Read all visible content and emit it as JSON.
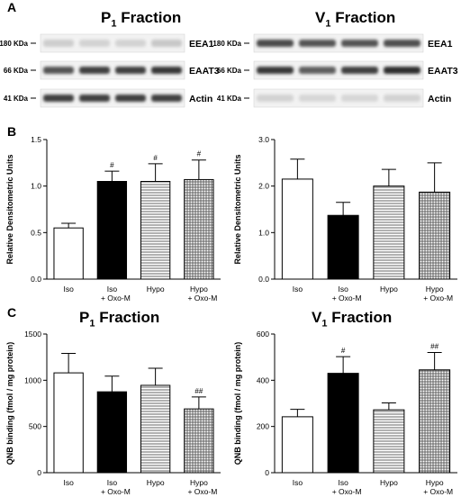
{
  "panels": {
    "a": "A",
    "b": "B",
    "c": "C"
  },
  "blots": [
    {
      "title_main": "P",
      "title_sub": "1",
      "title_rest": " Fraction",
      "lanes": 4,
      "rows": [
        {
          "marker": "180 KDa",
          "protein": "EEA1",
          "intensity": [
            0.15,
            0.12,
            0.12,
            0.18
          ]
        },
        {
          "marker": "66 KDa",
          "protein": "EAAT3",
          "intensity": [
            0.75,
            0.85,
            0.85,
            0.9
          ]
        },
        {
          "marker": "41 KDa",
          "protein": "Actin",
          "intensity": [
            0.85,
            0.85,
            0.85,
            0.85
          ]
        }
      ]
    },
    {
      "title_main": "V",
      "title_sub": "1",
      "title_rest": " Fraction",
      "lanes": 4,
      "rows": [
        {
          "marker": "180 KDa",
          "protein": "EEA1",
          "intensity": [
            0.8,
            0.75,
            0.75,
            0.78
          ]
        },
        {
          "marker": "66 KDa",
          "protein": "EAAT3",
          "intensity": [
            0.9,
            0.7,
            0.85,
            0.95
          ]
        },
        {
          "marker": "41 KDa",
          "protein": "Actin",
          "intensity": [
            0.12,
            0.1,
            0.1,
            0.12
          ]
        }
      ]
    }
  ],
  "chart_data": [
    {
      "type": "bar",
      "panel": "B-left",
      "categories": [
        "Iso",
        "Iso\n+ Oxo-M",
        "Hypo",
        "Hypo\n+ Oxo-M"
      ],
      "values": [
        0.55,
        1.05,
        1.05,
        1.07
      ],
      "errors": [
        0.05,
        0.11,
        0.19,
        0.21
      ],
      "markers": [
        "",
        "#",
        "#",
        "#"
      ],
      "ylabel": "Relative Densitometric Units",
      "ylim": [
        0,
        1.5
      ],
      "yticks": [
        "0.0",
        "0.5",
        "1.0",
        "1.5"
      ],
      "fills": [
        "white",
        "black",
        "hlines",
        "grid"
      ]
    },
    {
      "type": "bar",
      "panel": "B-right",
      "categories": [
        "Iso",
        "Iso\n+ Oxo-M",
        "Hypo",
        "Hypo\n+ Oxo-M"
      ],
      "values": [
        2.15,
        1.37,
        2.0,
        1.87
      ],
      "errors": [
        0.43,
        0.28,
        0.36,
        0.63
      ],
      "markers": [
        "",
        "",
        "",
        ""
      ],
      "ylabel": "Relative Densitometric Units",
      "ylim": [
        0,
        3.0
      ],
      "yticks": [
        "0.0",
        "1.0",
        "2.0",
        "3.0"
      ],
      "fills": [
        "white",
        "black",
        "hlines",
        "grid"
      ]
    },
    {
      "type": "bar",
      "panel": "C-left",
      "title_main": "P",
      "title_sub": "1",
      "title_rest": " Fraction",
      "categories": [
        "Iso",
        "Iso\n+ Oxo-M",
        "Hypo",
        "Hypo\n+ Oxo-M"
      ],
      "values": [
        1080,
        875,
        945,
        690
      ],
      "errors": [
        210,
        170,
        185,
        130
      ],
      "markers": [
        "",
        "",
        "",
        "##"
      ],
      "ylabel": "QNB binding (fmol / mg protein)",
      "ylim": [
        0,
        1500
      ],
      "yticks": [
        "0",
        "500",
        "1000",
        "1500"
      ],
      "fills": [
        "white",
        "black",
        "hlines",
        "grid"
      ]
    },
    {
      "type": "bar",
      "panel": "C-right",
      "title_main": "V",
      "title_sub": "1",
      "title_rest": " Fraction",
      "categories": [
        "Iso",
        "Iso\n+ Oxo-M",
        "Hypo",
        "Hypo\n+ Oxo-M"
      ],
      "values": [
        242,
        430,
        272,
        445
      ],
      "errors": [
        32,
        72,
        30,
        75
      ],
      "markers": [
        "",
        "#",
        "",
        "##"
      ],
      "ylabel": "QNB binding (fmol / mg protein)",
      "ylim": [
        0,
        600
      ],
      "yticks": [
        "0",
        "200",
        "400",
        "600"
      ],
      "fills": [
        "white",
        "black",
        "hlines",
        "grid"
      ]
    }
  ]
}
